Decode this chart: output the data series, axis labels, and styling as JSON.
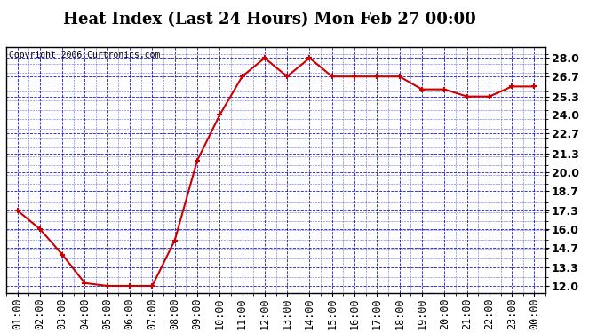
{
  "title": "Heat Index (Last 24 Hours) Mon Feb 27 00:00",
  "copyright": "Copyright 2006 Curtronics.com",
  "x_labels": [
    "01:00",
    "02:00",
    "03:00",
    "04:00",
    "05:00",
    "06:00",
    "07:00",
    "08:00",
    "09:00",
    "10:00",
    "11:00",
    "12:00",
    "13:00",
    "14:00",
    "15:00",
    "16:00",
    "17:00",
    "18:00",
    "19:00",
    "20:00",
    "21:00",
    "22:00",
    "23:00",
    "00:00"
  ],
  "y_values": [
    17.3,
    16.0,
    14.2,
    12.2,
    12.0,
    12.0,
    12.0,
    15.2,
    20.8,
    24.0,
    26.7,
    28.0,
    26.7,
    28.0,
    26.7,
    26.7,
    26.7,
    26.7,
    25.8,
    25.8,
    25.3,
    25.3,
    26.0,
    26.0
  ],
  "y_ticks": [
    12.0,
    13.3,
    14.7,
    16.0,
    17.3,
    18.7,
    20.0,
    21.3,
    22.7,
    24.0,
    25.3,
    26.7,
    28.0
  ],
  "y_tick_labels": [
    "12.0",
    "13.3",
    "14.7",
    "16.0",
    "17.3",
    "18.7",
    "20.0",
    "21.3",
    "22.7",
    "24.0",
    "25.3",
    "26.7",
    "28.0"
  ],
  "ylim": [
    11.5,
    28.8
  ],
  "line_color": "#cc0000",
  "marker": "+",
  "marker_color": "#cc0000",
  "bg_color": "#ffffff",
  "plot_bg_color": "#ffffff",
  "grid_color": "#0000bb",
  "title_fontsize": 13,
  "copyright_fontsize": 7,
  "tick_fontsize": 8.5,
  "ytick_fontsize": 9
}
